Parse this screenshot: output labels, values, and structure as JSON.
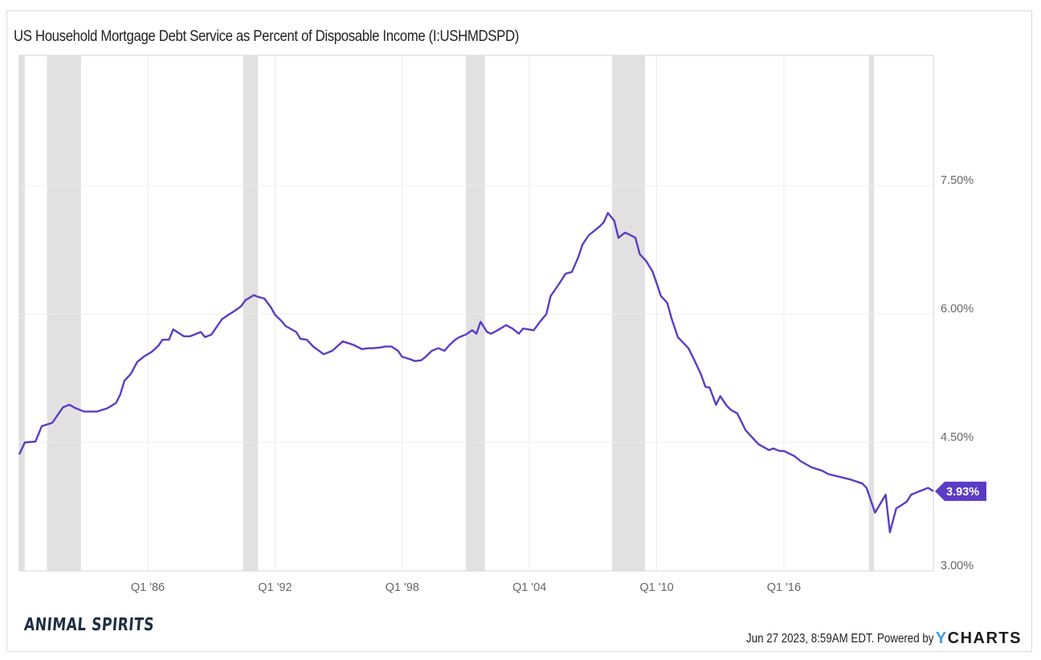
{
  "title": "US Household Mortgage Debt Service as Percent of Disposable Income (I:USHMDSPD)",
  "footer": {
    "timestamp": "Jun 27 2023, 8:59AM EDT. Powered by",
    "provider_logo_y": "Y",
    "provider_logo_rest": "CHARTS"
  },
  "brand_logo": "ANIMAL SPIRITS",
  "colors": {
    "line": "#5b3cc4",
    "recession": "#e1e1e1",
    "grid": "#ececec",
    "label_bg": "#5b3cc4"
  },
  "chart_data": {
    "type": "line",
    "title": "US Household Mortgage Debt Service as Percent of Disposable Income (I:USHMDSPD)",
    "xlabel": "",
    "ylabel": "",
    "xlim": [
      1979.94,
      2023.05
    ],
    "ylim": [
      3.0,
      9.02
    ],
    "yticks": [
      3.0,
      4.5,
      6.0,
      7.5
    ],
    "ytick_labels": [
      "3.00%",
      "4.50%",
      "6.00%",
      "7.50%"
    ],
    "xticks": [
      1986,
      1992,
      1998,
      2004,
      2010,
      2016
    ],
    "xtick_labels": [
      "Q1 '86",
      "Q1 '92",
      "Q1 '98",
      "Q1 '04",
      "Q1 '10",
      "Q1 '16"
    ],
    "grid": true,
    "last_value_label": "3.93%",
    "recessions": [
      [
        1979.94,
        1980.2
      ],
      [
        1981.25,
        1982.85
      ],
      [
        1990.5,
        1991.2
      ],
      [
        2001.0,
        2001.9
      ],
      [
        2007.9,
        2009.45
      ],
      [
        2020.0,
        2020.25
      ]
    ],
    "series": [
      {
        "name": "I:USHMDSPD",
        "x": [
          1979.94,
          1980.2,
          1980.7,
          1981.0,
          1981.5,
          1982.0,
          1982.3,
          1982.6,
          1983.0,
          1983.6,
          1984.1,
          1984.5,
          1984.7,
          1984.9,
          1985.2,
          1985.5,
          1985.8,
          1986.2,
          1986.5,
          1986.7,
          1987.0,
          1987.2,
          1987.7,
          1988.0,
          1988.5,
          1988.7,
          1989.0,
          1989.5,
          1989.8,
          1990.0,
          1990.4,
          1990.6,
          1991.0,
          1991.2,
          1991.5,
          1991.8,
          1992.0,
          1992.3,
          1992.5,
          1993.0,
          1993.2,
          1993.5,
          1993.8,
          1994.3,
          1994.7,
          1995.2,
          1995.7,
          1996.1,
          1996.4,
          1996.6,
          1997.0,
          1997.2,
          1997.5,
          1997.8,
          1998.0,
          1998.4,
          1998.6,
          1998.9,
          1999.1,
          1999.4,
          1999.7,
          2000.0,
          2000.2,
          2000.5,
          2000.7,
          2001.0,
          2001.3,
          2001.5,
          2001.7,
          2002.0,
          2002.2,
          2002.5,
          2002.9,
          2003.2,
          2003.5,
          2003.7,
          2004.2,
          2004.5,
          2004.8,
          2005.0,
          2005.2,
          2005.5,
          2005.7,
          2006.0,
          2006.3,
          2006.5,
          2006.8,
          2007.3,
          2007.5,
          2007.7,
          2008.0,
          2008.2,
          2008.5,
          2008.7,
          2009.0,
          2009.2,
          2009.5,
          2009.8,
          2010.0,
          2010.2,
          2010.5,
          2010.7,
          2011.0,
          2011.5,
          2011.8,
          2012.1,
          2012.3,
          2012.5,
          2012.8,
          2013.0,
          2013.3,
          2013.5,
          2013.8,
          2014.2,
          2014.8,
          2015.3,
          2015.5,
          2015.8,
          2016.0,
          2016.5,
          2016.8,
          2017.3,
          2017.8,
          2018.1,
          2018.6,
          2019.1,
          2019.7,
          2019.9,
          2020.3,
          2020.8,
          2021.0,
          2021.3,
          2021.5,
          2021.8,
          2022.0,
          2022.3,
          2022.8,
          2023.05
        ],
        "values": [
          4.36,
          4.5,
          4.51,
          4.69,
          4.73,
          4.91,
          4.94,
          4.9,
          4.86,
          4.86,
          4.9,
          4.96,
          5.06,
          5.22,
          5.3,
          5.44,
          5.5,
          5.56,
          5.63,
          5.7,
          5.7,
          5.82,
          5.74,
          5.74,
          5.79,
          5.73,
          5.76,
          5.94,
          5.99,
          6.02,
          6.09,
          6.16,
          6.22,
          6.2,
          6.18,
          6.08,
          5.99,
          5.92,
          5.86,
          5.79,
          5.71,
          5.7,
          5.62,
          5.53,
          5.57,
          5.68,
          5.64,
          5.59,
          5.6,
          5.6,
          5.61,
          5.62,
          5.62,
          5.57,
          5.5,
          5.47,
          5.45,
          5.46,
          5.5,
          5.57,
          5.6,
          5.57,
          5.63,
          5.7,
          5.73,
          5.76,
          5.81,
          5.77,
          5.91,
          5.79,
          5.77,
          5.81,
          5.87,
          5.83,
          5.77,
          5.83,
          5.81,
          5.91,
          6.0,
          6.21,
          6.28,
          6.39,
          6.47,
          6.49,
          6.66,
          6.81,
          6.92,
          7.02,
          7.07,
          7.18,
          7.09,
          6.89,
          6.95,
          6.93,
          6.89,
          6.7,
          6.62,
          6.5,
          6.36,
          6.21,
          6.13,
          5.95,
          5.73,
          5.6,
          5.45,
          5.29,
          5.15,
          5.14,
          4.94,
          5.04,
          4.93,
          4.88,
          4.84,
          4.64,
          4.48,
          4.41,
          4.43,
          4.4,
          4.4,
          4.34,
          4.28,
          4.21,
          4.17,
          4.13,
          4.1,
          4.07,
          4.02,
          3.97,
          3.68,
          3.89,
          3.45,
          3.73,
          3.76,
          3.81,
          3.89,
          3.92,
          3.97,
          3.93
        ]
      }
    ]
  }
}
